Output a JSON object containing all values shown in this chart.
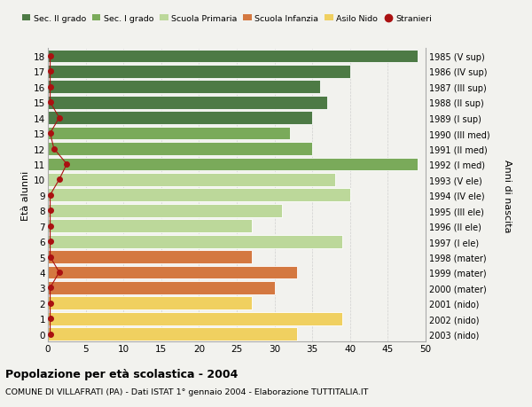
{
  "ages": [
    18,
    17,
    16,
    15,
    14,
    13,
    12,
    11,
    10,
    9,
    8,
    7,
    6,
    5,
    4,
    3,
    2,
    1,
    0
  ],
  "right_labels": [
    "1985 (V sup)",
    "1986 (IV sup)",
    "1987 (III sup)",
    "1988 (II sup)",
    "1989 (I sup)",
    "1990 (III med)",
    "1991 (II med)",
    "1992 (I med)",
    "1993 (V ele)",
    "1994 (IV ele)",
    "1995 (III ele)",
    "1996 (II ele)",
    "1997 (I ele)",
    "1998 (mater)",
    "1999 (mater)",
    "2000 (mater)",
    "2001 (nido)",
    "2002 (nido)",
    "2003 (nido)"
  ],
  "bar_values": [
    49,
    40,
    36,
    37,
    35,
    32,
    35,
    49,
    38,
    40,
    31,
    27,
    39,
    27,
    33,
    30,
    27,
    39,
    33
  ],
  "bar_colors": [
    "#4d7a45",
    "#4d7a45",
    "#4d7a45",
    "#4d7a45",
    "#4d7a45",
    "#7aaa5a",
    "#7aaa5a",
    "#7aaa5a",
    "#bcd89a",
    "#bcd89a",
    "#bcd89a",
    "#bcd89a",
    "#bcd89a",
    "#d47840",
    "#d47840",
    "#d47840",
    "#f0d060",
    "#f0d060",
    "#f0d060"
  ],
  "stranieri_x": [
    0.3,
    0.3,
    0.3,
    0.3,
    1.5,
    0.3,
    0.8,
    2.5,
    1.5,
    0.3,
    0.3,
    0.3,
    0.3,
    0.3,
    1.5,
    0.3,
    0.3,
    0.3,
    0.3
  ],
  "stranieri_color": "#aa1111",
  "legend_labels": [
    "Sec. II grado",
    "Sec. I grado",
    "Scuola Primaria",
    "Scuola Infanzia",
    "Asilo Nido",
    "Stranieri"
  ],
  "legend_colors": [
    "#4d7a45",
    "#7aaa5a",
    "#bcd89a",
    "#d47840",
    "#f0d060",
    "#aa1111"
  ],
  "ylabel_left": "Età alunni",
  "ylabel_right": "Anni di nascita",
  "xlim": [
    0,
    50
  ],
  "xticks": [
    0,
    5,
    10,
    15,
    20,
    25,
    30,
    35,
    40,
    45,
    50
  ],
  "title_bold": "Popolazione per età scolastica - 2004",
  "subtitle": "COMUNE DI VILLAFRATI (PA) - Dati ISTAT 1° gennaio 2004 - Elaborazione TUTTITALIA.IT",
  "background_color": "#f2f2ee",
  "bar_edge_color": "white",
  "grid_color": "#cccccc"
}
